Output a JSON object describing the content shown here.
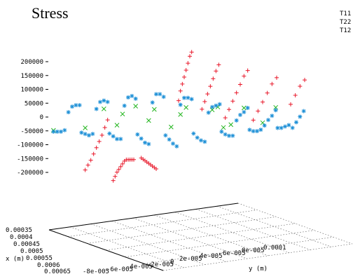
{
  "chart_data": {
    "type": "scatter",
    "title": "Stress",
    "legend": [
      "T11",
      "T22",
      "T12"
    ],
    "legend_position": "top-right",
    "z_ticks": [
      "200000",
      "150000",
      "100000",
      "50000",
      "0",
      "-50000",
      "-100000",
      "-150000",
      "-200000"
    ],
    "zlim": [
      -200000,
      200000
    ],
    "xlabel": "x (m)",
    "x_ticks": [
      "0.00035",
      "0.0004",
      "0.00045",
      "0.0005",
      "0.00055",
      "0.0006",
      "0.00065"
    ],
    "ylabel": "y (m)",
    "y_ticks": [
      "-8e-005",
      "-6e-005",
      "-4e-005",
      "-2e-005",
      "0",
      "2e-005",
      "4e-005",
      "6e-005",
      "8e-005",
      "0.0001"
    ],
    "grid": true,
    "series": [
      {
        "name": "T11",
        "color": "#e8182a",
        "marker": "+",
        "points": [
          [
            0.0004,
            -2e-05,
            -120000
          ],
          [
            0.00042,
            -2e-05,
            -130000
          ],
          [
            0.00044,
            -2e-05,
            -140000
          ],
          [
            0.00046,
            -2e-05,
            -150000
          ],
          [
            0.00048,
            -2e-05,
            -160000
          ],
          [
            0.0005,
            -2e-05,
            -170000
          ],
          [
            0.00052,
            -2e-05,
            -180000
          ],
          [
            0.00054,
            -2e-05,
            -190000
          ],
          [
            0.00056,
            -2e-05,
            -200000
          ],
          [
            0.0004,
            -4e-05,
            -200000
          ],
          [
            0.00042,
            -4e-05,
            -190000
          ],
          [
            0.00044,
            -4e-05,
            -180000
          ],
          [
            0.00046,
            -4e-05,
            -175000
          ],
          [
            0.00048,
            -4e-05,
            -170000
          ],
          [
            0.0005,
            -4e-05,
            -165000
          ],
          [
            0.00052,
            -4e-05,
            -160000
          ],
          [
            0.00054,
            -4e-05,
            -160000
          ],
          [
            0.00056,
            -4e-05,
            -165000
          ],
          [
            0.00058,
            -4e-05,
            -170000
          ],
          [
            0.0006,
            -4e-05,
            -175000
          ],
          [
            0.00062,
            -4e-05,
            -180000
          ],
          [
            0.0004,
            -6e-05,
            -160000
          ],
          [
            0.00043,
            -6e-05,
            -150000
          ],
          [
            0.00046,
            -6e-05,
            -140000
          ],
          [
            0.00049,
            -6e-05,
            -125000
          ],
          [
            0.00052,
            -6e-05,
            -110000
          ],
          [
            0.00055,
            -6e-05,
            -95000
          ],
          [
            0.00058,
            -6e-05,
            -80000
          ],
          [
            0.00061,
            -6e-05,
            -60000
          ],
          [
            0.00064,
            -6e-05,
            -40000
          ],
          [
            0.0005,
            0,
            60000
          ],
          [
            0.00052,
            0,
            90000
          ],
          [
            0.00054,
            0,
            110000
          ],
          [
            0.00056,
            0,
            130000
          ],
          [
            0.00058,
            0,
            150000
          ],
          [
            0.0006,
            0,
            170000
          ],
          [
            0.00062,
            0,
            190000
          ],
          [
            0.00064,
            0,
            200000
          ],
          [
            0.00045,
            2e-05,
            40000
          ],
          [
            0.00048,
            2e-05,
            60000
          ],
          [
            0.00051,
            2e-05,
            80000
          ],
          [
            0.00054,
            2e-05,
            100000
          ],
          [
            0.00057,
            2e-05,
            120000
          ],
          [
            0.0006,
            2e-05,
            140000
          ],
          [
            0.00063,
            2e-05,
            155000
          ],
          [
            0.0004,
            4e-05,
            20000
          ],
          [
            0.00044,
            4e-05,
            40000
          ],
          [
            0.00048,
            4e-05,
            60000
          ],
          [
            0.00052,
            4e-05,
            80000
          ],
          [
            0.00056,
            4e-05,
            100000
          ],
          [
            0.0006,
            4e-05,
            120000
          ],
          [
            0.00064,
            4e-05,
            130000
          ],
          [
            0.0004,
            6e-05,
            10000
          ],
          [
            0.00045,
            6e-05,
            30000
          ],
          [
            0.0005,
            6e-05,
            50000
          ],
          [
            0.00055,
            6e-05,
            70000
          ],
          [
            0.0006,
            6e-05,
            90000
          ],
          [
            0.00065,
            6e-05,
            100000
          ],
          [
            0.0005,
            8e-05,
            40000
          ],
          [
            0.00055,
            8e-05,
            60000
          ],
          [
            0.0006,
            8e-05,
            80000
          ],
          [
            0.00065,
            8e-05,
            90000
          ]
        ]
      },
      {
        "name": "T22",
        "color": "#22b51e",
        "marker": "x",
        "points": [
          [
            0.00036,
            -8e-05,
            -5000
          ],
          [
            0.0004,
            -6e-05,
            -8000
          ],
          [
            0.00044,
            -4e-05,
            -10000
          ],
          [
            0.00048,
            -2e-05,
            -5000
          ],
          [
            0.00052,
            0,
            5000
          ],
          [
            0.00056,
            2e-05,
            10000
          ],
          [
            0.0006,
            4e-05,
            5000
          ],
          [
            0.00064,
            6e-05,
            -5000
          ],
          [
            0.0005,
            -4e-05,
            15000
          ],
          [
            0.00054,
            -2e-05,
            20000
          ],
          [
            0.00058,
            0,
            15000
          ],
          [
            0.00062,
            2e-05,
            5000
          ],
          [
            0.00046,
            4e-05,
            -20000
          ],
          [
            0.0005,
            6e-05,
            -25000
          ],
          [
            0.00042,
            0,
            -15000
          ],
          [
            0.0006,
            -6e-05,
            10000
          ],
          [
            0.00064,
            -4e-05,
            8000
          ],
          [
            0.00038,
            4e-05,
            -10000
          ]
        ]
      },
      {
        "name": "T12",
        "color": "#1a8ed6",
        "marker": "*",
        "points": [
          [
            0.00036,
            -8e-05,
            -10000
          ],
          [
            0.00036,
            -6e-05,
            -15000
          ],
          [
            0.00036,
            -4e-05,
            -20000
          ],
          [
            0.00036,
            -2e-05,
            -25000
          ],
          [
            0.00036,
            0,
            -30000
          ],
          [
            0.00036,
            2e-05,
            -25000
          ],
          [
            0.00036,
            4e-05,
            -20000
          ],
          [
            0.00036,
            6e-05,
            -15000
          ],
          [
            0.00036,
            8e-05,
            -10000
          ],
          [
            0.0004,
            -8e-05,
            -20000
          ],
          [
            0.0004,
            -6e-05,
            -30000
          ],
          [
            0.0004,
            -4e-05,
            -40000
          ],
          [
            0.0004,
            -2e-05,
            -50000
          ],
          [
            0.0004,
            0,
            -55000
          ],
          [
            0.0004,
            2e-05,
            -50000
          ],
          [
            0.0004,
            4e-05,
            -40000
          ],
          [
            0.0004,
            6e-05,
            -30000
          ],
          [
            0.0004,
            8e-05,
            -20000
          ],
          [
            0.00044,
            -8e-05,
            -30000
          ],
          [
            0.00044,
            -6e-05,
            -45000
          ],
          [
            0.00044,
            -4e-05,
            -60000
          ],
          [
            0.00044,
            -2e-05,
            -75000
          ],
          [
            0.00044,
            0,
            -80000
          ],
          [
            0.00044,
            2e-05,
            -70000
          ],
          [
            0.00044,
            4e-05,
            -55000
          ],
          [
            0.00044,
            6e-05,
            -40000
          ],
          [
            0.00044,
            8e-05,
            -25000
          ],
          [
            0.00048,
            -8e-05,
            -35000
          ],
          [
            0.00048,
            -6e-05,
            -50000
          ],
          [
            0.00048,
            -4e-05,
            -70000
          ],
          [
            0.00048,
            -2e-05,
            -90000
          ],
          [
            0.00048,
            0,
            -100000
          ],
          [
            0.00048,
            2e-05,
            -85000
          ],
          [
            0.00048,
            4e-05,
            -65000
          ],
          [
            0.00048,
            6e-05,
            -45000
          ],
          [
            0.00048,
            8e-05,
            -30000
          ],
          [
            0.00052,
            -8e-05,
            20000
          ],
          [
            0.00052,
            -6e-05,
            30000
          ],
          [
            0.00052,
            -4e-05,
            40000
          ],
          [
            0.00052,
            -2e-05,
            50000
          ],
          [
            0.00052,
            0,
            40000
          ],
          [
            0.00052,
            2e-05,
            10000
          ],
          [
            0.00052,
            4e-05,
            -20000
          ],
          [
            0.00052,
            6e-05,
            -40000
          ],
          [
            0.00052,
            8e-05,
            -50000
          ],
          [
            0.00056,
            -8e-05,
            30000
          ],
          [
            0.00056,
            -6e-05,
            45000
          ],
          [
            0.00056,
            -4e-05,
            60000
          ],
          [
            0.00056,
            -2e-05,
            70000
          ],
          [
            0.00056,
            0,
            55000
          ],
          [
            0.00056,
            2e-05,
            20000
          ],
          [
            0.00056,
            4e-05,
            -10000
          ],
          [
            0.00056,
            6e-05,
            -30000
          ],
          [
            0.00056,
            8e-05,
            -40000
          ],
          [
            0.0006,
            -8e-05,
            25000
          ],
          [
            0.0006,
            -6e-05,
            40000
          ],
          [
            0.0006,
            -4e-05,
            55000
          ],
          [
            0.0006,
            -2e-05,
            60000
          ],
          [
            0.0006,
            0,
            45000
          ],
          [
            0.0006,
            2e-05,
            15000
          ],
          [
            0.0006,
            4e-05,
            -10000
          ],
          [
            0.0006,
            6e-05,
            -25000
          ],
          [
            0.0006,
            8e-05,
            -30000
          ],
          [
            0.00064,
            -8e-05,
            15000
          ],
          [
            0.00064,
            -6e-05,
            25000
          ],
          [
            0.00064,
            -4e-05,
            35000
          ],
          [
            0.00064,
            -2e-05,
            40000
          ],
          [
            0.00064,
            0,
            30000
          ],
          [
            0.00064,
            2e-05,
            10000
          ],
          [
            0.00064,
            4e-05,
            -5000
          ],
          [
            0.00064,
            6e-05,
            -15000
          ],
          [
            0.00064,
            8e-05,
            -20000
          ]
        ]
      }
    ]
  }
}
